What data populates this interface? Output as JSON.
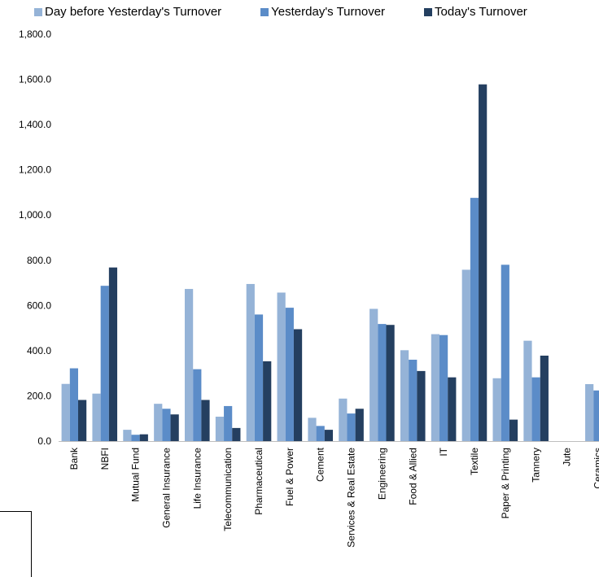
{
  "chart_data": {
    "type": "bar",
    "title": "",
    "xlabel": "",
    "ylabel": "",
    "ylim": [
      0,
      1800
    ],
    "y_ticks": [
      "0.0",
      "200.0",
      "400.0",
      "600.0",
      "800.0",
      "1,000.0",
      "1,200.0",
      "1,400.0",
      "1,600.0",
      "1,800.0"
    ],
    "grid": false,
    "legend_position": "top",
    "categories": [
      "Bank",
      "NBFI",
      "Mutual Fund",
      "General Insurance",
      "Life Insurance",
      "Telecommunication",
      "Pharmaceutical",
      "Fuel & Power",
      "Cement",
      "Services & Real Estate",
      "Engineering",
      "Food & Allied",
      "IT",
      "Textile",
      "Paper & Printing",
      "Tannery",
      "Jute",
      "Ceramics"
    ],
    "series": [
      {
        "name": "Day before Yesterday's Turnover",
        "color": "#95b3d7",
        "values": [
          253,
          210,
          50,
          165,
          673,
          108,
          695,
          657,
          103,
          188,
          585,
          402,
          473,
          758,
          278,
          444,
          0,
          252
        ]
      },
      {
        "name": "Yesterday's Turnover",
        "color": "#5b8cc8",
        "values": [
          322,
          687,
          28,
          143,
          318,
          155,
          560,
          590,
          67,
          122,
          518,
          360,
          469,
          1076,
          780,
          282,
          0,
          224
        ]
      },
      {
        "name": "Today's Turnover",
        "color": "#243f60",
        "values": [
          182,
          768,
          30,
          118,
          182,
          58,
          353,
          495,
          50,
          143,
          514,
          310,
          282,
          1578,
          95,
          378,
          0,
          0
        ]
      }
    ]
  }
}
